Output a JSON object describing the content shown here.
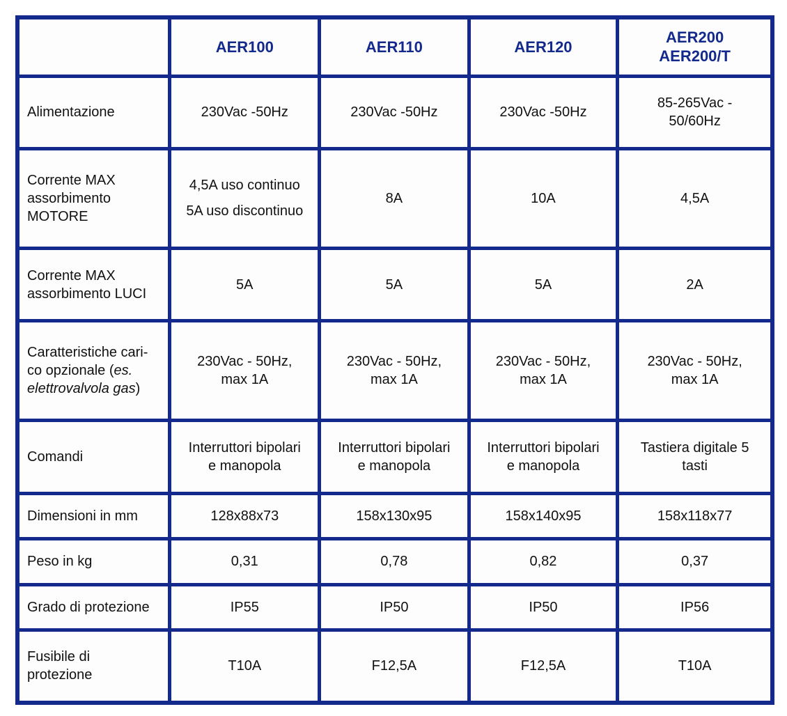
{
  "colors": {
    "grid_border": "#13298c",
    "header_text": "#13298c",
    "body_text": "#111111",
    "cell_background": "#fdfdfd",
    "page_background": "#ffffff"
  },
  "table": {
    "header": {
      "corner": "",
      "columns": [
        "AER100",
        "AER110",
        "AER120",
        "AER200\nAER200/T"
      ]
    },
    "rows": [
      {
        "label": "Alimentazione",
        "values": [
          "230Vac -50Hz",
          "230Vac -50Hz",
          "230Vac -50Hz",
          "85-265Vac -\n50/60Hz"
        ]
      },
      {
        "label": "Corrente MAX\nassorbimento\nMOTORE",
        "values": [
          "4,5A uso continuo\n5A uso discontinuo",
          "8A",
          "10A",
          "4,5A"
        ]
      },
      {
        "label": "Corrente MAX\nassorbimento LUCI",
        "values": [
          "5A",
          "5A",
          "5A",
          "2A"
        ]
      },
      {
        "label_parts": {
          "before": "Caratteristiche cari-co opzionale (",
          "italic": "es. elettrovalvola gas",
          "after": ")"
        },
        "values": [
          "230Vac - 50Hz,\nmax 1A",
          "230Vac - 50Hz,\nmax 1A",
          "230Vac - 50Hz,\nmax 1A",
          "230Vac - 50Hz,\nmax 1A"
        ]
      },
      {
        "label": "Comandi",
        "values": [
          "Interruttori bipolari\ne manopola",
          "Interruttori bipolari\ne manopola",
          "Interruttori bipolari\ne manopola",
          "Tastiera digitale 5\ntasti"
        ]
      },
      {
        "label": "Dimensioni in mm",
        "values": [
          "128x88x73",
          "158x130x95",
          "158x140x95",
          "158x118x77"
        ]
      },
      {
        "label": "Peso in kg",
        "values": [
          "0,31",
          "0,78",
          "0,82",
          "0,37"
        ]
      },
      {
        "label": "Grado di protezione",
        "values": [
          "IP55",
          "IP50",
          "IP50",
          "IP56"
        ]
      },
      {
        "label": "Fusibile di\nprotezione",
        "values": [
          "T10A",
          "F12,5A",
          "F12,5A",
          "T10A"
        ]
      }
    ]
  }
}
